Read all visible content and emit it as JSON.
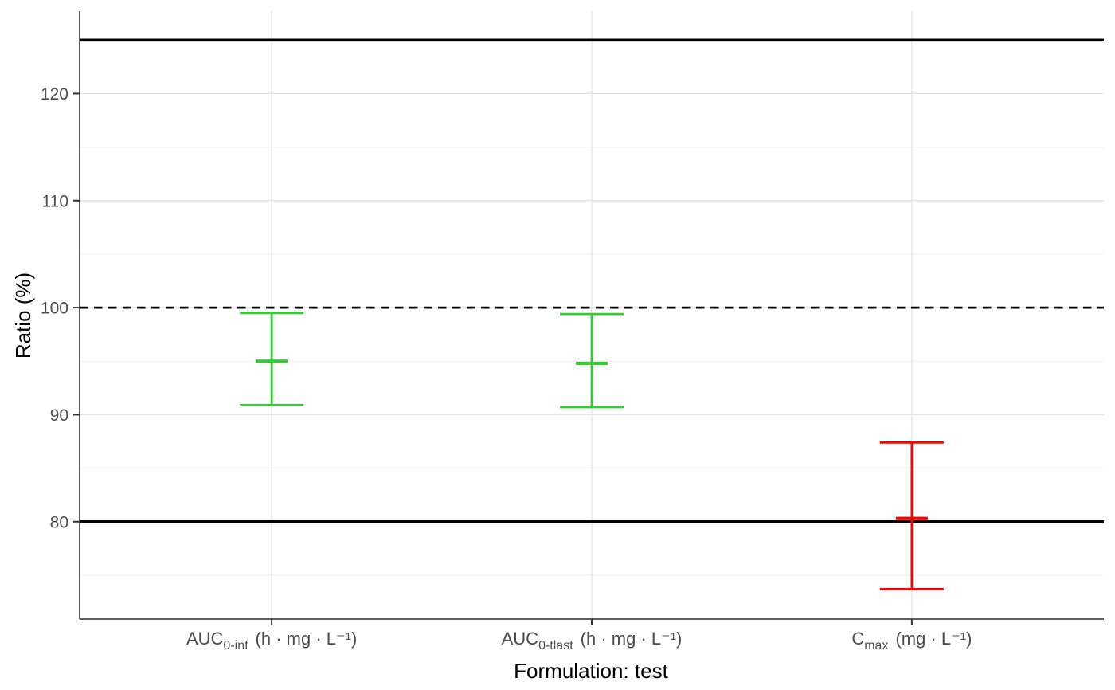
{
  "chart_data": {
    "type": "errorbar",
    "title": "",
    "xlabel": "Formulation: test",
    "ylabel": "Ratio (%)",
    "ylim": [
      70.9,
      127.7
    ],
    "y_major_ticks": [
      80,
      90,
      100,
      110,
      120
    ],
    "y_minor_gridlines": [
      75,
      85,
      95,
      105,
      115,
      125
    ],
    "grid": "on",
    "legend": "none",
    "categories": [
      {
        "id": "auc0inf",
        "pre": "AUC",
        "sub": "0-inf",
        "unit": "(h · mg · L⁻¹)"
      },
      {
        "id": "auc0tlast",
        "pre": "AUC",
        "sub": "0-tlast",
        "unit": "(h · mg · L⁻¹)"
      },
      {
        "id": "cmax",
        "pre": "C",
        "sub": "max",
        "unit": "(mg · L⁻¹)"
      }
    ],
    "points": [
      {
        "name": "AUC0-inf",
        "lower": 90.9,
        "mid": 95.0,
        "upper": 99.5,
        "color": "#32CD32"
      },
      {
        "name": "AUC0-tlast",
        "lower": 90.7,
        "mid": 94.8,
        "upper": 99.4,
        "color": "#32CD32"
      },
      {
        "name": "Cmax",
        "lower": 73.7,
        "mid": 80.3,
        "upper": 87.4,
        "color": "#FF0000"
      }
    ],
    "reference_lines": [
      {
        "y": 125,
        "style": "solid",
        "color": "#000000"
      },
      {
        "y": 100,
        "style": "dashed",
        "color": "#000000"
      },
      {
        "y": 80,
        "style": "solid",
        "color": "#000000"
      }
    ],
    "colors": {
      "within_limits": "#32CD32",
      "outside_limits": "#FF0000",
      "grid_major": "#E2E2E2",
      "grid_minor": "#EFEFEF",
      "axis_line": "#4A4A4A",
      "tick_mark": "#333333",
      "tick_label": "#4D4D4D",
      "background": "#FFFFFF"
    }
  }
}
